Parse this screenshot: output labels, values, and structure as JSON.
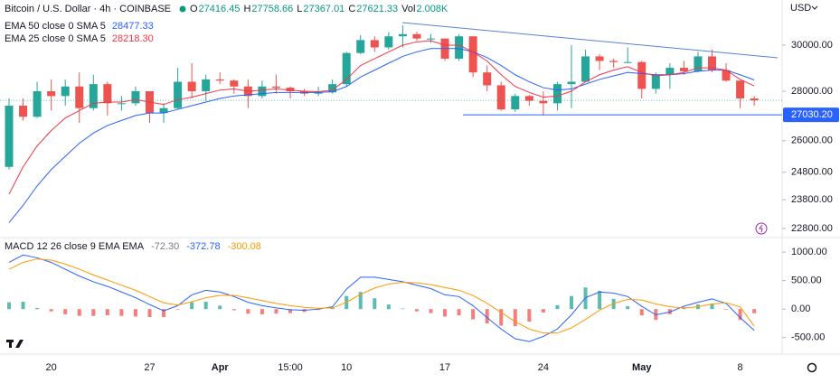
{
  "header": {
    "symbol": "Bitcoin / U.S. Dollar · 4h · COINBASE",
    "ohlc": [
      {
        "label": "O",
        "value": "27416.45"
      },
      {
        "label": "H",
        "value": "27758.66"
      },
      {
        "label": "L",
        "value": "27367.01"
      },
      {
        "label": "C",
        "value": "27621.33"
      },
      {
        "label": "Vol",
        "value": "2.008K"
      }
    ],
    "currency": "USD"
  },
  "chart_data": [
    {
      "type": "candlestick",
      "categories": [
        null,
        null,
        null,
        "20",
        null,
        null,
        null,
        null,
        null,
        null,
        "27",
        null,
        null,
        null,
        null,
        "Apr",
        null,
        null,
        null,
        null,
        "15:00",
        null,
        null,
        null,
        "10",
        null,
        null,
        null,
        null,
        null,
        null,
        "17",
        null,
        null,
        null,
        null,
        null,
        null,
        "24",
        null,
        null,
        null,
        null,
        null,
        null,
        "May",
        null,
        null,
        null,
        null,
        null,
        null,
        "8",
        null
      ],
      "open": [
        25000,
        27400,
        26950,
        28000,
        27800,
        28200,
        27300,
        28300,
        27500,
        27500,
        28000,
        27100,
        27300,
        28400,
        28000,
        28500,
        28450,
        28200,
        27800,
        28200,
        28150,
        28000,
        27900,
        27950,
        28300,
        29650,
        30230,
        29900,
        30400,
        30500,
        30300,
        30300,
        29400,
        30400,
        28800,
        28250,
        27250,
        27800,
        27600,
        27500,
        28300,
        28400,
        29500,
        29300,
        29250,
        29250,
        28100,
        28700,
        29000,
        28850,
        29500,
        28900,
        28450,
        27700
      ],
      "high": [
        27700,
        27700,
        28400,
        28500,
        28500,
        28800,
        28700,
        28400,
        27800,
        28200,
        28000,
        27500,
        29000,
        29200,
        28700,
        28800,
        28500,
        28500,
        28450,
        28700,
        28200,
        28100,
        28200,
        28500,
        29700,
        30450,
        30400,
        30600,
        30900,
        30600,
        30500,
        30300,
        30500,
        30400,
        29100,
        28400,
        27900,
        27850,
        28000,
        28400,
        30000,
        29800,
        29600,
        29400,
        29900,
        29300,
        28800,
        29200,
        29300,
        29700,
        29800,
        29200,
        28450,
        27800
      ],
      "low": [
        24900,
        26800,
        26900,
        27200,
        27400,
        26700,
        27200,
        27000,
        27200,
        27400,
        26700,
        26700,
        27250,
        27700,
        27600,
        28300,
        27900,
        27300,
        27700,
        27900,
        27700,
        27800,
        27800,
        27900,
        28200,
        29600,
        29700,
        29800,
        29900,
        30200,
        30100,
        29300,
        29300,
        28600,
        28000,
        27200,
        27150,
        27400,
        27000,
        27200,
        27300,
        28400,
        28900,
        29000,
        29200,
        27700,
        27900,
        28100,
        28700,
        28800,
        28800,
        28400,
        27300,
        27400
      ],
      "close": [
        27400,
        26950,
        28000,
        27800,
        28200,
        27300,
        28300,
        27500,
        27500,
        28000,
        27100,
        27300,
        28400,
        28000,
        28500,
        28450,
        28200,
        27800,
        28200,
        28150,
        28000,
        27900,
        27950,
        28300,
        29650,
        30230,
        29900,
        30400,
        30500,
        30300,
        30300,
        29400,
        30400,
        28800,
        28250,
        27250,
        27800,
        27600,
        27500,
        28300,
        28400,
        29500,
        29300,
        29250,
        29250,
        28100,
        28700,
        29000,
        28850,
        29500,
        28900,
        28450,
        27700,
        27620
      ],
      "up_color": "#26a69a",
      "down_color": "#ef5350",
      "series": [
        {
          "name": "EMA 50 close 0 SMA 5",
          "legend_value": "28477.33",
          "color": "#2962ff",
          "values": [
            23000,
            23600,
            24300,
            24900,
            25400,
            25900,
            26300,
            26600,
            26800,
            27000,
            27100,
            27100,
            27250,
            27400,
            27550,
            27700,
            27800,
            27850,
            27900,
            27950,
            27950,
            27950,
            27950,
            27980,
            28200,
            28600,
            28900,
            29200,
            29500,
            29700,
            29850,
            29850,
            29850,
            29700,
            29450,
            29100,
            28700,
            28400,
            28150,
            28050,
            28100,
            28300,
            28500,
            28650,
            28800,
            28750,
            28700,
            28700,
            28750,
            28850,
            28900,
            28900,
            28700,
            28477
          ]
        },
        {
          "name": "EMA 25 close 0 SMA 5",
          "legend_value": "28218.30",
          "color": "#f23645",
          "values": [
            24000,
            25000,
            25800,
            26400,
            26900,
            27200,
            27500,
            27550,
            27550,
            27650,
            27550,
            27450,
            27650,
            27750,
            27900,
            28050,
            28100,
            28000,
            28050,
            28100,
            28050,
            28000,
            27980,
            28050,
            28500,
            29100,
            29400,
            29700,
            30000,
            30150,
            30200,
            30000,
            30000,
            29700,
            29300,
            28700,
            28200,
            27950,
            27750,
            27800,
            28000,
            28400,
            28700,
            28900,
            29050,
            28800,
            28650,
            28700,
            28800,
            29000,
            29000,
            28900,
            28500,
            28220
          ]
        }
      ],
      "support": {
        "value": 27030.2,
        "label": "27030.20"
      },
      "ylim": [
        22520,
        32100
      ],
      "log_scale": true,
      "yticks": [
        {
          "value": 30000,
          "label": "30000.00"
        },
        {
          "value": 28000,
          "label": "28000.00"
        },
        {
          "value": 26000,
          "label": "26000.00"
        },
        {
          "value": 24800,
          "label": "24800.00"
        },
        {
          "value": 23800,
          "label": "23800.00"
        },
        {
          "value": 22800,
          "label": "22800.00"
        }
      ]
    },
    {
      "type": "macd",
      "title": "MACD 12 26 close 9 EMA EMA",
      "histogram": {
        "legend_value": "-72.30",
        "up_color": "#26a69a",
        "down_color": "#ef5350",
        "values": [
          120,
          130,
          20,
          -40,
          -90,
          -120,
          -120,
          -110,
          -120,
          -130,
          -140,
          -140,
          -10,
          120,
          130,
          60,
          -20,
          -80,
          -90,
          -80,
          -70,
          -50,
          -15,
          20,
          230,
          300,
          190,
          80,
          10,
          -40,
          -70,
          -130,
          -110,
          -180,
          -250,
          -290,
          -300,
          -220,
          -60,
          70,
          230,
          380,
          320,
          180,
          50,
          -110,
          -190,
          -90,
          30,
          80,
          90,
          -10,
          -190,
          -73
        ]
      },
      "macd": {
        "legend_value": "-372.78",
        "color": "#2962ff",
        "values": [
          820,
          950,
          900,
          820,
          700,
          580,
          480,
          400,
          300,
          200,
          80,
          -30,
          60,
          250,
          330,
          300,
          220,
          120,
          60,
          20,
          -10,
          -20,
          0,
          40,
          350,
          560,
          560,
          520,
          480,
          420,
          360,
          250,
          220,
          60,
          -150,
          -350,
          -520,
          -570,
          -480,
          -350,
          -100,
          200,
          300,
          280,
          220,
          50,
          -100,
          -50,
          50,
          120,
          180,
          100,
          -150,
          -373
        ]
      },
      "signal": {
        "legend_value": "-300.08",
        "color": "#ff9800",
        "values": [
          700,
          820,
          880,
          860,
          790,
          700,
          600,
          510,
          420,
          330,
          220,
          110,
          70,
          130,
          200,
          240,
          240,
          200,
          150,
          100,
          60,
          30,
          15,
          20,
          120,
          260,
          370,
          440,
          470,
          460,
          430,
          380,
          330,
          240,
          100,
          -60,
          -220,
          -350,
          -420,
          -420,
          -330,
          -180,
          -20,
          100,
          170,
          160,
          90,
          40,
          20,
          40,
          90,
          110,
          40,
          -300
        ]
      },
      "ylim": [
        -790,
        1240
      ],
      "yticks": [
        {
          "value": 1000,
          "label": "1000.00"
        },
        {
          "value": 500,
          "label": "500.00"
        },
        {
          "value": 0,
          "label": "0.00"
        },
        {
          "value": -500,
          "label": "-500.00"
        }
      ]
    }
  ]
}
